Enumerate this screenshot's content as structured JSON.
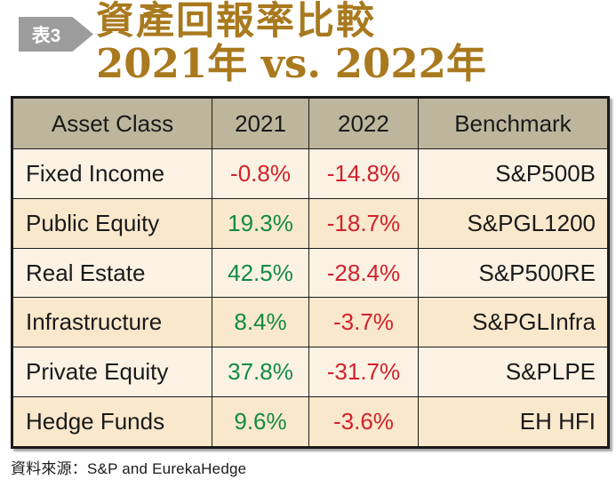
{
  "badge": {
    "label": "表3"
  },
  "title": {
    "line1": "資產回報率比較",
    "line2": "2021年 vs. 2022年"
  },
  "table": {
    "headers": [
      "Asset Class",
      "2021",
      "2022",
      "Benchmark"
    ],
    "rows": [
      {
        "asset": "Fixed Income",
        "y2021": "-0.8%",
        "y2022": "-14.8%",
        "benchmark": "S&P500B"
      },
      {
        "asset": "Public Equity",
        "y2021": "19.3%",
        "y2022": "-18.7%",
        "benchmark": "S&PGL1200"
      },
      {
        "asset": "Real Estate",
        "y2021": "42.5%",
        "y2022": "-28.4%",
        "benchmark": "S&P500RE"
      },
      {
        "asset": "Infrastructure",
        "y2021": "8.4%",
        "y2022": "-3.7%",
        "benchmark": "S&PGLInfra"
      },
      {
        "asset": "Private Equity",
        "y2021": "37.8%",
        "y2022": "-31.7%",
        "benchmark": "S&PLPE"
      },
      {
        "asset": "Hedge Funds",
        "y2021": "9.6%",
        "y2022": "-3.6%",
        "benchmark": "EH HFI"
      }
    ]
  },
  "footer": {
    "source": "資料來源：S&P and EurekaHedge"
  },
  "colors": {
    "positive": "#128a46",
    "negative": "#d2212b",
    "title": "#a9791e",
    "badge_bg": "#9c9c9c",
    "header_bg": "#bdb69d",
    "row_light": "#fcf2e4",
    "row_dark": "#fae8cc",
    "border": "#1a1a1a"
  }
}
